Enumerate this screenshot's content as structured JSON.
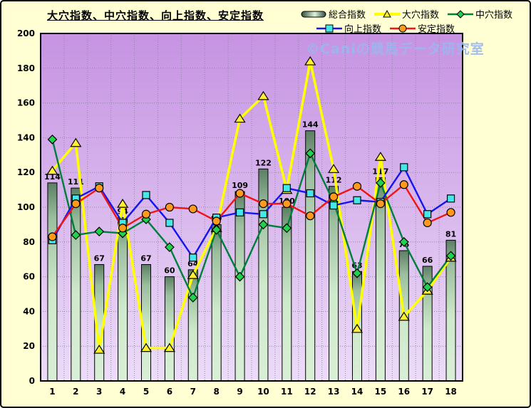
{
  "title": "大穴指数、中穴指数、向上指数、安定指数",
  "watermark": "©Caniの競馬データ研究室",
  "colors": {
    "frame_background": "#ffffd3",
    "plot_gradient_top": "#c693e2",
    "plot_gradient_bottom": "#ecdcf8",
    "grid_line": "#9187a5",
    "watermark_text": "#9bb7f1",
    "bar_gradient": [
      "#5c7f64",
      "#9cbf9f",
      "#cfe9cc",
      "#d9efd6"
    ],
    "bar_swatch_dark": "#2e4d36",
    "bar_swatch_light": "#dff2de"
  },
  "legend": {
    "items": [
      {
        "label": "総合指数",
        "marker": "bar-swatch",
        "line_color": "",
        "marker_color": ""
      },
      {
        "label": "大穴指数",
        "marker": "triangle",
        "line_color": "#ffff00",
        "marker_color": "#ffef33"
      },
      {
        "label": "中穴指数",
        "marker": "diamond",
        "line_color": "#007f3c",
        "marker_color": "#1fd34f"
      },
      {
        "label": "向上指数",
        "marker": "square",
        "line_color": "#1414f0",
        "marker_color": "#44e8ea"
      },
      {
        "label": "安定指数",
        "marker": "circle",
        "line_color": "#f01414",
        "marker_color": "#ff9a1e"
      }
    ]
  },
  "chart_data": {
    "type": "bar+line",
    "title": "大穴指数、中穴指数、向上指数、安定指数",
    "categories": [
      "1",
      "2",
      "3",
      "4",
      "5",
      "6",
      "7",
      "8",
      "9",
      "10",
      "11",
      "12",
      "13",
      "14",
      "15",
      "16",
      "17",
      "18"
    ],
    "ylim": [
      0,
      200
    ],
    "ytick_step": 20,
    "grid": true,
    "legend_position": "top-right",
    "bar_series": {
      "name": "総合指数",
      "values": [
        114,
        111,
        67,
        94,
        67,
        60,
        64,
        90,
        109,
        122,
        100,
        144,
        112,
        63,
        117,
        75,
        66,
        81
      ],
      "labels_shown": true
    },
    "line_series": [
      {
        "name": "大穴指数",
        "key": "ooana",
        "marker": "triangle",
        "line_color": "#ffff00",
        "marker_color": "#ffef33",
        "values": [
          121,
          137,
          18,
          102,
          19,
          19,
          61,
          88,
          151,
          164,
          110,
          184,
          122,
          30,
          129,
          37,
          52,
          71
        ]
      },
      {
        "name": "中穴指数",
        "key": "chuuana",
        "marker": "diamond",
        "line_color": "#007f3c",
        "marker_color": "#1fd34f",
        "values": [
          139,
          84,
          86,
          85,
          93,
          77,
          48,
          87,
          60,
          90,
          88,
          131,
          103,
          62,
          114,
          80,
          54,
          72
        ]
      },
      {
        "name": "向上指数",
        "key": "koujou",
        "marker": "square",
        "line_color": "#1414f0",
        "marker_color": "#44e8ea",
        "values": [
          81,
          105,
          112,
          91,
          107,
          91,
          71,
          94,
          97,
          96,
          111,
          108,
          101,
          104,
          103,
          123,
          96,
          105
        ]
      },
      {
        "name": "安定指数",
        "key": "antei",
        "marker": "circle",
        "line_color": "#f01414",
        "marker_color": "#ff9a1e",
        "values": [
          83,
          102,
          111,
          88,
          96,
          100,
          99,
          92,
          108,
          102,
          102,
          95,
          106,
          112,
          102,
          113,
          91,
          97
        ]
      }
    ]
  }
}
